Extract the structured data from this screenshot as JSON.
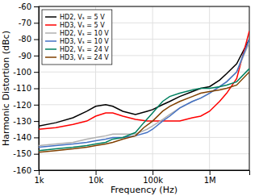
{
  "chart_data": {
    "type": "line",
    "xlabel": "Frequency (Hz)",
    "ylabel": "Harmonic Distortion (dBc)",
    "log": "x",
    "xlim": [
      1000,
      5000000
    ],
    "xticks": [
      {
        "value": 1000,
        "label": "1k"
      },
      {
        "value": 10000,
        "label": "10k"
      },
      {
        "value": 100000,
        "label": "100k"
      },
      {
        "value": 1000000,
        "label": "1M"
      }
    ],
    "ylim": [
      -160,
      -60
    ],
    "yticks": [
      -160,
      -150,
      -140,
      -130,
      -120,
      -110,
      -100,
      -90,
      -80,
      -70,
      -60
    ],
    "grid": true,
    "legend": "upper-left",
    "series": [
      {
        "name": "HD2, Vₛ = 5 V",
        "color": "#000000",
        "x": [
          1000,
          2000,
          4000,
          7000,
          10000,
          15000,
          20000,
          30000,
          50000,
          80000,
          100000,
          150000,
          200000,
          300000,
          500000,
          700000,
          1000000,
          1500000,
          2000000,
          3000000,
          5000000
        ],
        "values": [
          -133,
          -131,
          -128,
          -124,
          -121,
          -120,
          -121,
          -124,
          -126,
          -124,
          -123,
          -120,
          -118,
          -115,
          -112,
          -110,
          -109,
          -105,
          -101,
          -95,
          -80
        ]
      },
      {
        "name": "HD3, Vₛ = 5 V",
        "color": "#ff0000",
        "x": [
          1000,
          2000,
          4000,
          7000,
          10000,
          15000,
          20000,
          30000,
          50000,
          80000,
          100000,
          150000,
          200000,
          300000,
          500000,
          700000,
          1000000,
          1500000,
          2000000,
          3000000,
          5000000
        ],
        "values": [
          -135,
          -134,
          -132,
          -130,
          -127,
          -125,
          -125,
          -127,
          -129,
          -130,
          -130,
          -130,
          -130,
          -130,
          -128,
          -127,
          -124,
          -118,
          -113,
          -104,
          -75
        ]
      },
      {
        "name": "HD2, Vₛ = 10 V",
        "color": "#b0b0b0",
        "x": [
          1000,
          2000,
          4000,
          7000,
          10000,
          15000,
          20000,
          30000,
          50000,
          80000,
          100000,
          150000,
          200000,
          300000,
          500000,
          700000,
          1000000,
          1500000,
          2000000,
          3000000,
          5000000
        ],
        "values": [
          -145,
          -144,
          -143,
          -141,
          -140,
          -139,
          -138,
          -138,
          -138,
          -135,
          -133,
          -129,
          -126,
          -122,
          -118,
          -116,
          -113,
          -109,
          -106,
          -100,
          -82
        ]
      },
      {
        "name": "HD3, Vₛ = 10 V",
        "color": "#4472c4",
        "x": [
          1000,
          2000,
          4000,
          7000,
          10000,
          15000,
          20000,
          30000,
          50000,
          80000,
          100000,
          150000,
          200000,
          300000,
          500000,
          700000,
          1000000,
          1500000,
          2000000,
          3000000,
          5000000
        ],
        "values": [
          -146,
          -145,
          -144,
          -143,
          -142,
          -141,
          -140,
          -140,
          -139,
          -137,
          -135,
          -130,
          -127,
          -122,
          -118,
          -116,
          -113,
          -109,
          -106,
          -100,
          -80
        ]
      },
      {
        "name": "HD2, Vₛ = 24 V",
        "color": "#008060",
        "x": [
          1000,
          2000,
          4000,
          7000,
          10000,
          15000,
          20000,
          30000,
          50000,
          70000,
          100000,
          150000,
          200000,
          300000,
          500000,
          700000,
          1000000,
          1500000,
          2000000,
          3000000,
          5000000
        ],
        "values": [
          -148,
          -147,
          -146,
          -145,
          -144,
          -143,
          -141,
          -140,
          -137,
          -131,
          -125,
          -118,
          -115,
          -113,
          -111,
          -110,
          -110,
          -109,
          -108,
          -106,
          -98
        ]
      },
      {
        "name": "HD3, Vₛ = 24 V",
        "color": "#804000",
        "x": [
          1000,
          2000,
          4000,
          7000,
          10000,
          15000,
          20000,
          30000,
          50000,
          70000,
          100000,
          150000,
          200000,
          300000,
          500000,
          700000,
          1000000,
          1500000,
          2000000,
          3000000,
          5000000
        ],
        "values": [
          -149,
          -148,
          -147,
          -146,
          -145,
          -144,
          -143,
          -141,
          -139,
          -134,
          -130,
          -124,
          -121,
          -118,
          -115,
          -113,
          -112,
          -111,
          -110,
          -108,
          -100
        ]
      }
    ]
  }
}
